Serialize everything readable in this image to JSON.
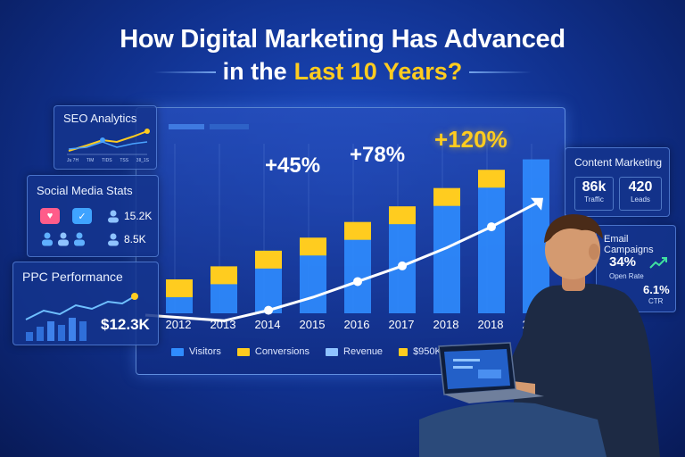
{
  "title": {
    "line1": "How Digital Marketing Has Advanced",
    "line2_pre": "in the",
    "line2_highlight": "Last 10 Years?"
  },
  "colors": {
    "background": "#10308c",
    "accent_yellow": "#ffcc1f",
    "bar_blue": "#2f8cff",
    "line_white": "#ffffff"
  },
  "seo_panel": {
    "title": "SEO Analytics",
    "tick_labels": [
      "Ju 7H",
      "TIM",
      "TIDS",
      "TSS",
      "3Il_1S"
    ]
  },
  "social_panel": {
    "title": "Social Media Stats",
    "stat1": "15.2K",
    "stat2": "8.5K",
    "icons": [
      "heart-icon",
      "like-icon",
      "user-icon",
      "group-icon"
    ]
  },
  "ppc_panel": {
    "title": "PPC Performance",
    "value": "$12.3K"
  },
  "content_panel": {
    "title": "Content Marketing",
    "traffic_value": "86k",
    "traffic_label": "Traffic",
    "leads_value": "420",
    "leads_label": "Leads"
  },
  "email_panel": {
    "title": "Email Campaigns",
    "open_rate_value": "34%",
    "open_rate_label": "Open Rate",
    "ctr_value": "6.1%",
    "ctr_label": "CTR"
  },
  "badges": {
    "b1": "+45%",
    "b2": "+78%",
    "b3": "+120%"
  },
  "legend": {
    "visitors": "Visitors",
    "conversions": "Conversions",
    "revenue": "Revenue",
    "revenue_value": "$950K"
  },
  "chart_data": {
    "type": "bar",
    "categories": [
      "2012",
      "2013",
      "2014",
      "2015",
      "2016",
      "2017",
      "2018",
      "2018",
      "2022"
    ],
    "series": [
      {
        "name": "Visitors",
        "values": [
          20,
          30,
          42,
          52,
          64,
          76,
          90,
          104,
          118
        ]
      },
      {
        "name": "Conversions",
        "values": [
          26,
          36,
          48,
          58,
          70,
          82,
          96,
          110,
          null
        ]
      },
      {
        "name": "Revenue",
        "values": [
          null,
          8,
          16,
          26,
          38,
          50,
          64,
          80,
          98
        ]
      }
    ]
  }
}
